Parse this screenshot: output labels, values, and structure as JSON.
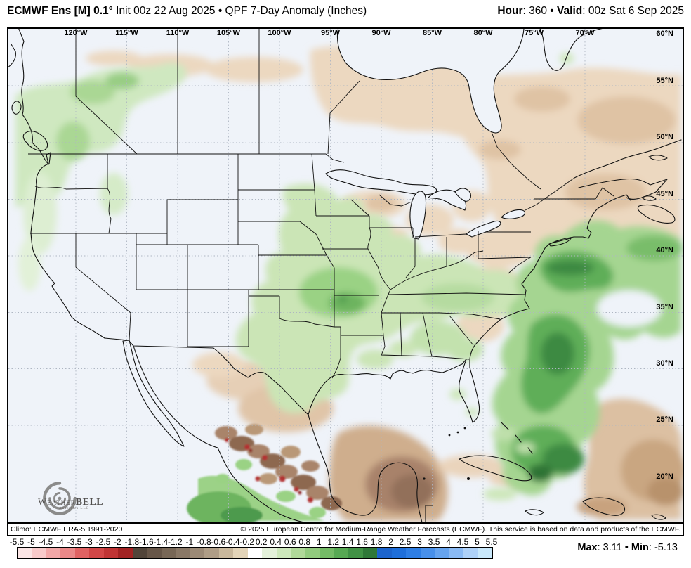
{
  "header": {
    "title_bold": "ECMWF Ens [M] 0.1°",
    "title_regular": " Init 00z 22 Aug 2025 • QPF 7-Day Anomaly (Inches)",
    "hour_label": "Hour",
    "hour_value": ": 360 • ",
    "valid_label": "Valid",
    "valid_value": ": 00z Sat 6 Sep 2025"
  },
  "map": {
    "lon_labels": [
      "120°W",
      "115°W",
      "110°W",
      "105°W",
      "100°W",
      "95°W",
      "90°W",
      "85°W",
      "80°W",
      "75°W",
      "70°W"
    ],
    "corner_label": "60°N",
    "lat_labels": [
      "55°N",
      "50°N",
      "45°N",
      "40°N",
      "35°N",
      "30°N",
      "25°N",
      "20°N"
    ],
    "logo": {
      "word1": "Weather",
      "word2": "BELL",
      "subtitle": "Analytics LLC"
    }
  },
  "footer": {
    "climo": "Climo: ECMWF ERA-5 1991-2020",
    "copyright": "© 2025 European Centre for Medium-Range Weather Forecasts (ECMWF). This service is based on data and products of the ECMWF."
  },
  "colorbar": {
    "ticks": [
      "-5.5",
      "-5",
      "-4.5",
      "-4",
      "-3.5",
      "-3",
      "-2.5",
      "-2",
      "-1.8",
      "-1.6",
      "-1.4",
      "-1.2",
      "-1",
      "-0.8",
      "-0.6",
      "-0.4",
      "-0.2",
      "0.2",
      "0.4",
      "0.6",
      "0.8",
      "1",
      "1.2",
      "1.4",
      "1.6",
      "1.8",
      "2",
      "2.5",
      "3",
      "3.5",
      "4",
      "4.5",
      "5",
      "5.5"
    ],
    "colors": [
      "#fbe5e5",
      "#f8caca",
      "#f2a7a7",
      "#ea8888",
      "#e06262",
      "#d24747",
      "#c03434",
      "#a22323",
      "#514439",
      "#675648",
      "#786756",
      "#8a7866",
      "#9c8a76",
      "#af9d86",
      "#c9b89c",
      "#e3d4b8",
      "#ffffff",
      "#e4f1da",
      "#cde8bb",
      "#b0d999",
      "#92cb7e",
      "#74bb66",
      "#57a953",
      "#419245",
      "#2f7838",
      "#1c64cd",
      "#1f6fda",
      "#2e7ee4",
      "#4890ea",
      "#66a4ef",
      "#8abaf4",
      "#aed1f8",
      "#c9e8fb"
    ]
  },
  "stats": {
    "max_label": "Max",
    "max_value": ": 3.11 • ",
    "min_label": "Min",
    "min_value": ": -5.13"
  }
}
